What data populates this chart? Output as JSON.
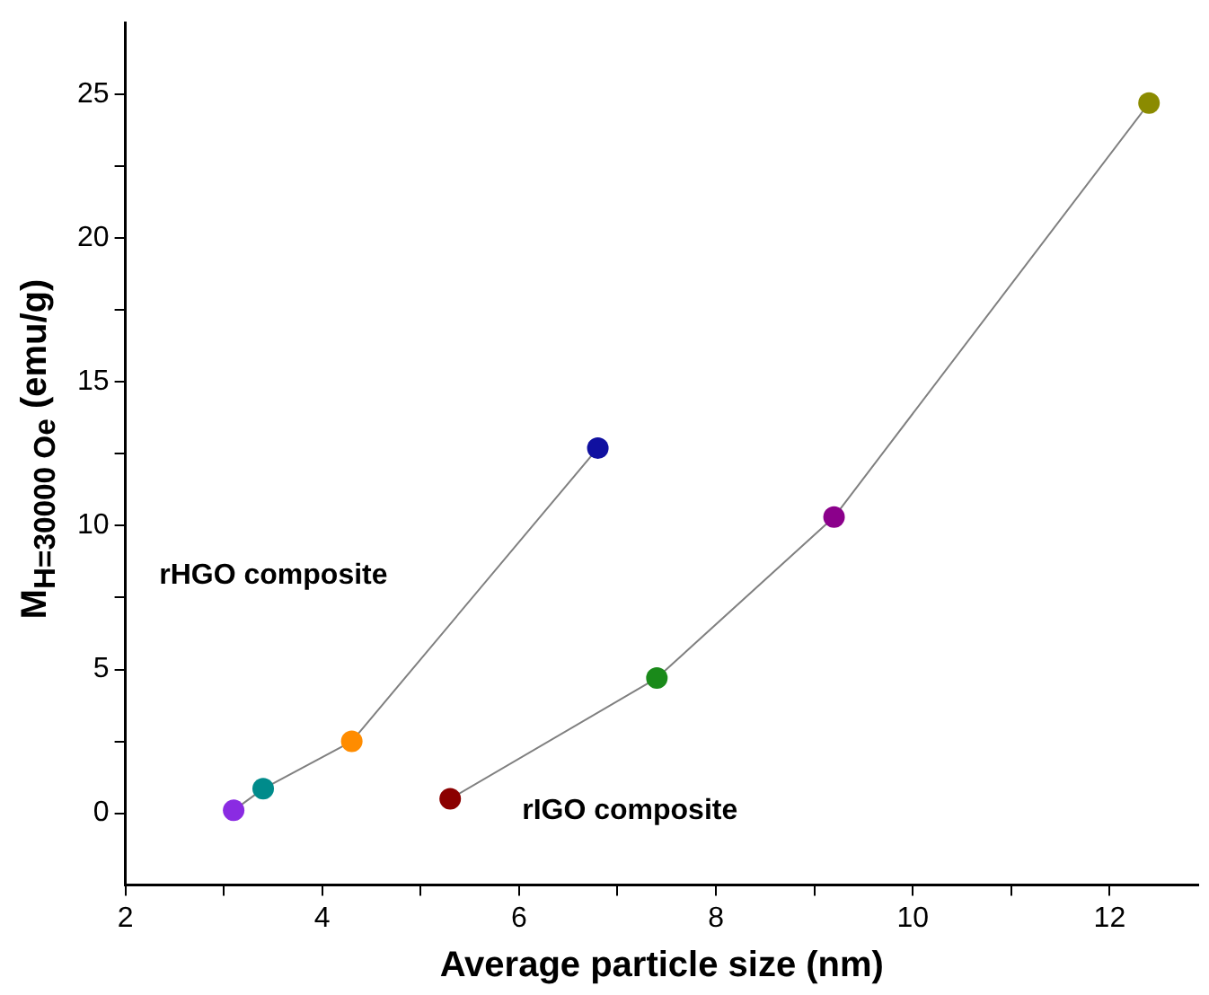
{
  "chart_data": {
    "type": "line",
    "xlabel": "Average particle size (nm)",
    "ylabel": "M$_{H=30000 Oe}$ (emu/g)",
    "marker": "circle",
    "grid": false,
    "legend": false,
    "xlim": [
      2,
      12.9
    ],
    "xticks": [
      2,
      {
        "value": 3,
        "label": null
      },
      4,
      {
        "value": 5,
        "label": null
      },
      6,
      {
        "value": 7,
        "label": null
      },
      8,
      {
        "value": 9,
        "label": null
      },
      10,
      {
        "value": 11,
        "label": null
      },
      12
    ],
    "ylim": [
      -2.5,
      27.5
    ],
    "yticks": [
      0,
      {
        "value": 2.5,
        "label": null
      },
      5,
      {
        "value": 7.5,
        "label": null
      },
      10,
      {
        "value": 12.5,
        "label": null
      },
      15,
      {
        "value": 17.5,
        "label": null
      },
      20,
      {
        "value": 22.5,
        "label": null
      },
      25
    ],
    "series": [
      {
        "name": "rHGO composite",
        "color": "#808080",
        "x": [
          3.1,
          3.4,
          4.3,
          6.8
        ],
        "values": [
          0.1,
          0.85,
          2.5,
          12.7
        ],
        "colors": [
          "#8a2be2",
          "#008b8b",
          "#ff8c00",
          "#1010a0"
        ]
      },
      {
        "name": "rIGO composite",
        "color": "#808080",
        "x": [
          5.3,
          7.4,
          9.2,
          12.4
        ],
        "values": [
          0.5,
          4.7,
          10.3,
          24.7
        ],
        "colors": [
          "#8b0000",
          "#1a8a1a",
          "#8b008b",
          "#8b8b00"
        ]
      }
    ]
  }
}
